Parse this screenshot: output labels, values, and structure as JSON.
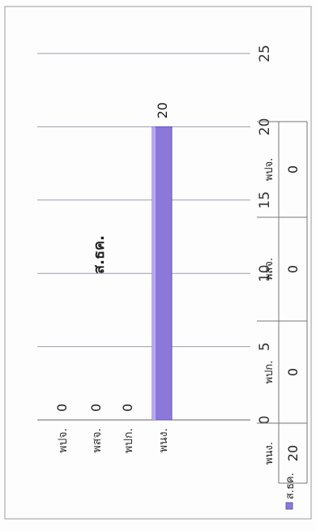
{
  "chart_data": {
    "type": "bar",
    "orientation": "horizontal",
    "title": "ส.ธค.",
    "categories": [
      "พปจ.",
      "พสจ.",
      "พปก.",
      "พนง."
    ],
    "series": [
      {
        "name": "ส.ธค.",
        "values": [
          0,
          0,
          0,
          20
        ],
        "color": "#8c78d8"
      }
    ],
    "value_labels": [
      "0",
      "0",
      "0",
      "20"
    ],
    "xlim": [
      0,
      25
    ],
    "x_ticks": [
      "0",
      "5",
      "10",
      "15",
      "20",
      "25"
    ],
    "grid": true,
    "legend_position": "left of data table",
    "data_table": {
      "headers": [
        "พนง.",
        "พปก.",
        "พสจ.",
        "พปจ."
      ],
      "rows": [
        {
          "label": "ส.ธค.",
          "values": [
            "20",
            "0",
            "0",
            "0"
          ]
        }
      ]
    },
    "rotated": true
  }
}
